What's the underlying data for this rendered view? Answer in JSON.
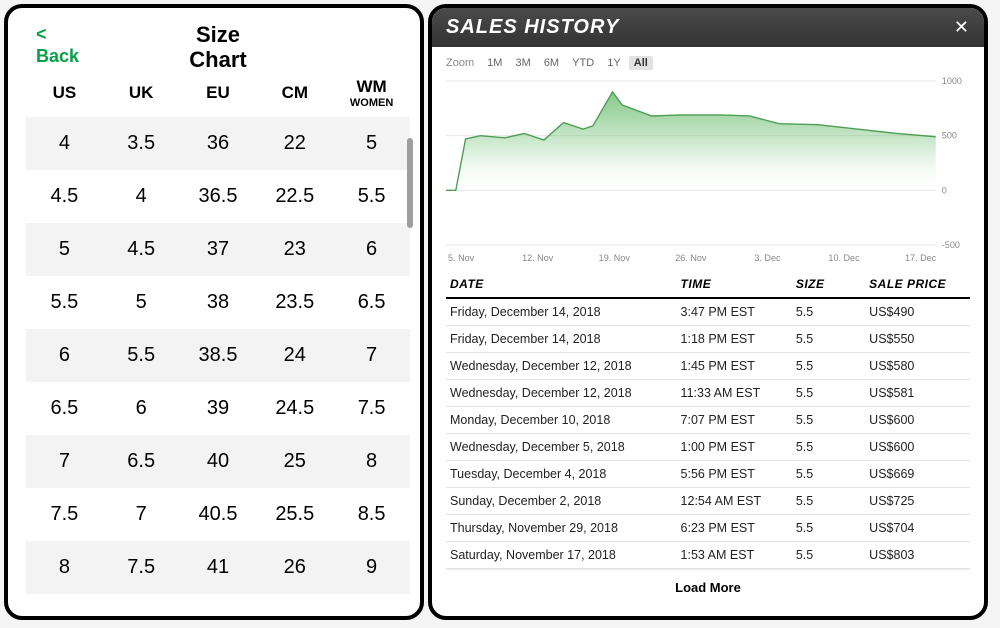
{
  "size_chart": {
    "back_label": "Back",
    "title_line1": "Size",
    "title_line2": "Chart",
    "columns": [
      "US",
      "UK",
      "EU",
      "CM",
      "WM"
    ],
    "col_sub": [
      "",
      "",
      "",
      "",
      "WOMEN"
    ],
    "rows": [
      [
        "4",
        "3.5",
        "36",
        "22",
        "5"
      ],
      [
        "4.5",
        "4",
        "36.5",
        "22.5",
        "5.5"
      ],
      [
        "5",
        "4.5",
        "37",
        "23",
        "6"
      ],
      [
        "5.5",
        "5",
        "38",
        "23.5",
        "6.5"
      ],
      [
        "6",
        "5.5",
        "38.5",
        "24",
        "7"
      ],
      [
        "6.5",
        "6",
        "39",
        "24.5",
        "7.5"
      ],
      [
        "7",
        "6.5",
        "40",
        "25",
        "8"
      ],
      [
        "7.5",
        "7",
        "40.5",
        "25.5",
        "8.5"
      ],
      [
        "8",
        "7.5",
        "41",
        "26",
        "9"
      ]
    ],
    "row_bg_odd": "#f3f3f3",
    "row_bg_even": "#ffffff",
    "accent_color": "#08a045"
  },
  "sales_history": {
    "title": "SALES HISTORY",
    "zoom_label": "Zoom",
    "zoom_options": [
      "1M",
      "3M",
      "6M",
      "YTD",
      "1Y",
      "All"
    ],
    "zoom_active": "All",
    "chart": {
      "type": "area",
      "fill_top": "#6fbf73",
      "fill_bottom": "#ffffff",
      "stroke": "#4e9f55",
      "grid_color": "#e7e7e7",
      "background": "#ffffff",
      "ylim": [
        -500,
        1000
      ],
      "yticks": [
        1000,
        500,
        0,
        -500
      ],
      "xticks": [
        "5. Nov",
        "12. Nov",
        "19. Nov",
        "26. Nov",
        "3. Dec",
        "10. Dec",
        "17. Dec"
      ],
      "points": [
        {
          "x": 0,
          "y": 0
        },
        {
          "x": 2,
          "y": 0
        },
        {
          "x": 4,
          "y": 470
        },
        {
          "x": 7,
          "y": 500
        },
        {
          "x": 12,
          "y": 480
        },
        {
          "x": 16,
          "y": 520
        },
        {
          "x": 20,
          "y": 460
        },
        {
          "x": 24,
          "y": 620
        },
        {
          "x": 28,
          "y": 560
        },
        {
          "x": 30,
          "y": 590
        },
        {
          "x": 34,
          "y": 900
        },
        {
          "x": 36,
          "y": 780
        },
        {
          "x": 42,
          "y": 680
        },
        {
          "x": 48,
          "y": 690
        },
        {
          "x": 56,
          "y": 690
        },
        {
          "x": 62,
          "y": 680
        },
        {
          "x": 68,
          "y": 610
        },
        {
          "x": 76,
          "y": 600
        },
        {
          "x": 84,
          "y": 560
        },
        {
          "x": 92,
          "y": 520
        },
        {
          "x": 100,
          "y": 490
        }
      ],
      "x_range": [
        0,
        100
      ]
    },
    "table_columns": [
      "DATE",
      "TIME",
      "SIZE",
      "SALE PRICE"
    ],
    "rows": [
      {
        "date": "Friday, December 14, 2018",
        "time": "3:47 PM EST",
        "size": "5.5",
        "price": "US$490"
      },
      {
        "date": "Friday, December 14, 2018",
        "time": "1:18 PM EST",
        "size": "5.5",
        "price": "US$550"
      },
      {
        "date": "Wednesday, December 12, 2018",
        "time": "1:45 PM EST",
        "size": "5.5",
        "price": "US$580"
      },
      {
        "date": "Wednesday, December 12, 2018",
        "time": "11:33 AM EST",
        "size": "5.5",
        "price": "US$581"
      },
      {
        "date": "Monday, December 10, 2018",
        "time": "7:07 PM EST",
        "size": "5.5",
        "price": "US$600"
      },
      {
        "date": "Wednesday, December 5, 2018",
        "time": "1:00 PM EST",
        "size": "5.5",
        "price": "US$600"
      },
      {
        "date": "Tuesday, December 4, 2018",
        "time": "5:56 PM EST",
        "size": "5.5",
        "price": "US$669"
      },
      {
        "date": "Sunday, December 2, 2018",
        "time": "12:54 AM EST",
        "size": "5.5",
        "price": "US$725"
      },
      {
        "date": "Thursday, November 29, 2018",
        "time": "6:23 PM EST",
        "size": "5.5",
        "price": "US$704"
      },
      {
        "date": "Saturday, November 17, 2018",
        "time": "1:53 AM EST",
        "size": "5.5",
        "price": "US$803"
      }
    ],
    "load_more_label": "Load More"
  }
}
